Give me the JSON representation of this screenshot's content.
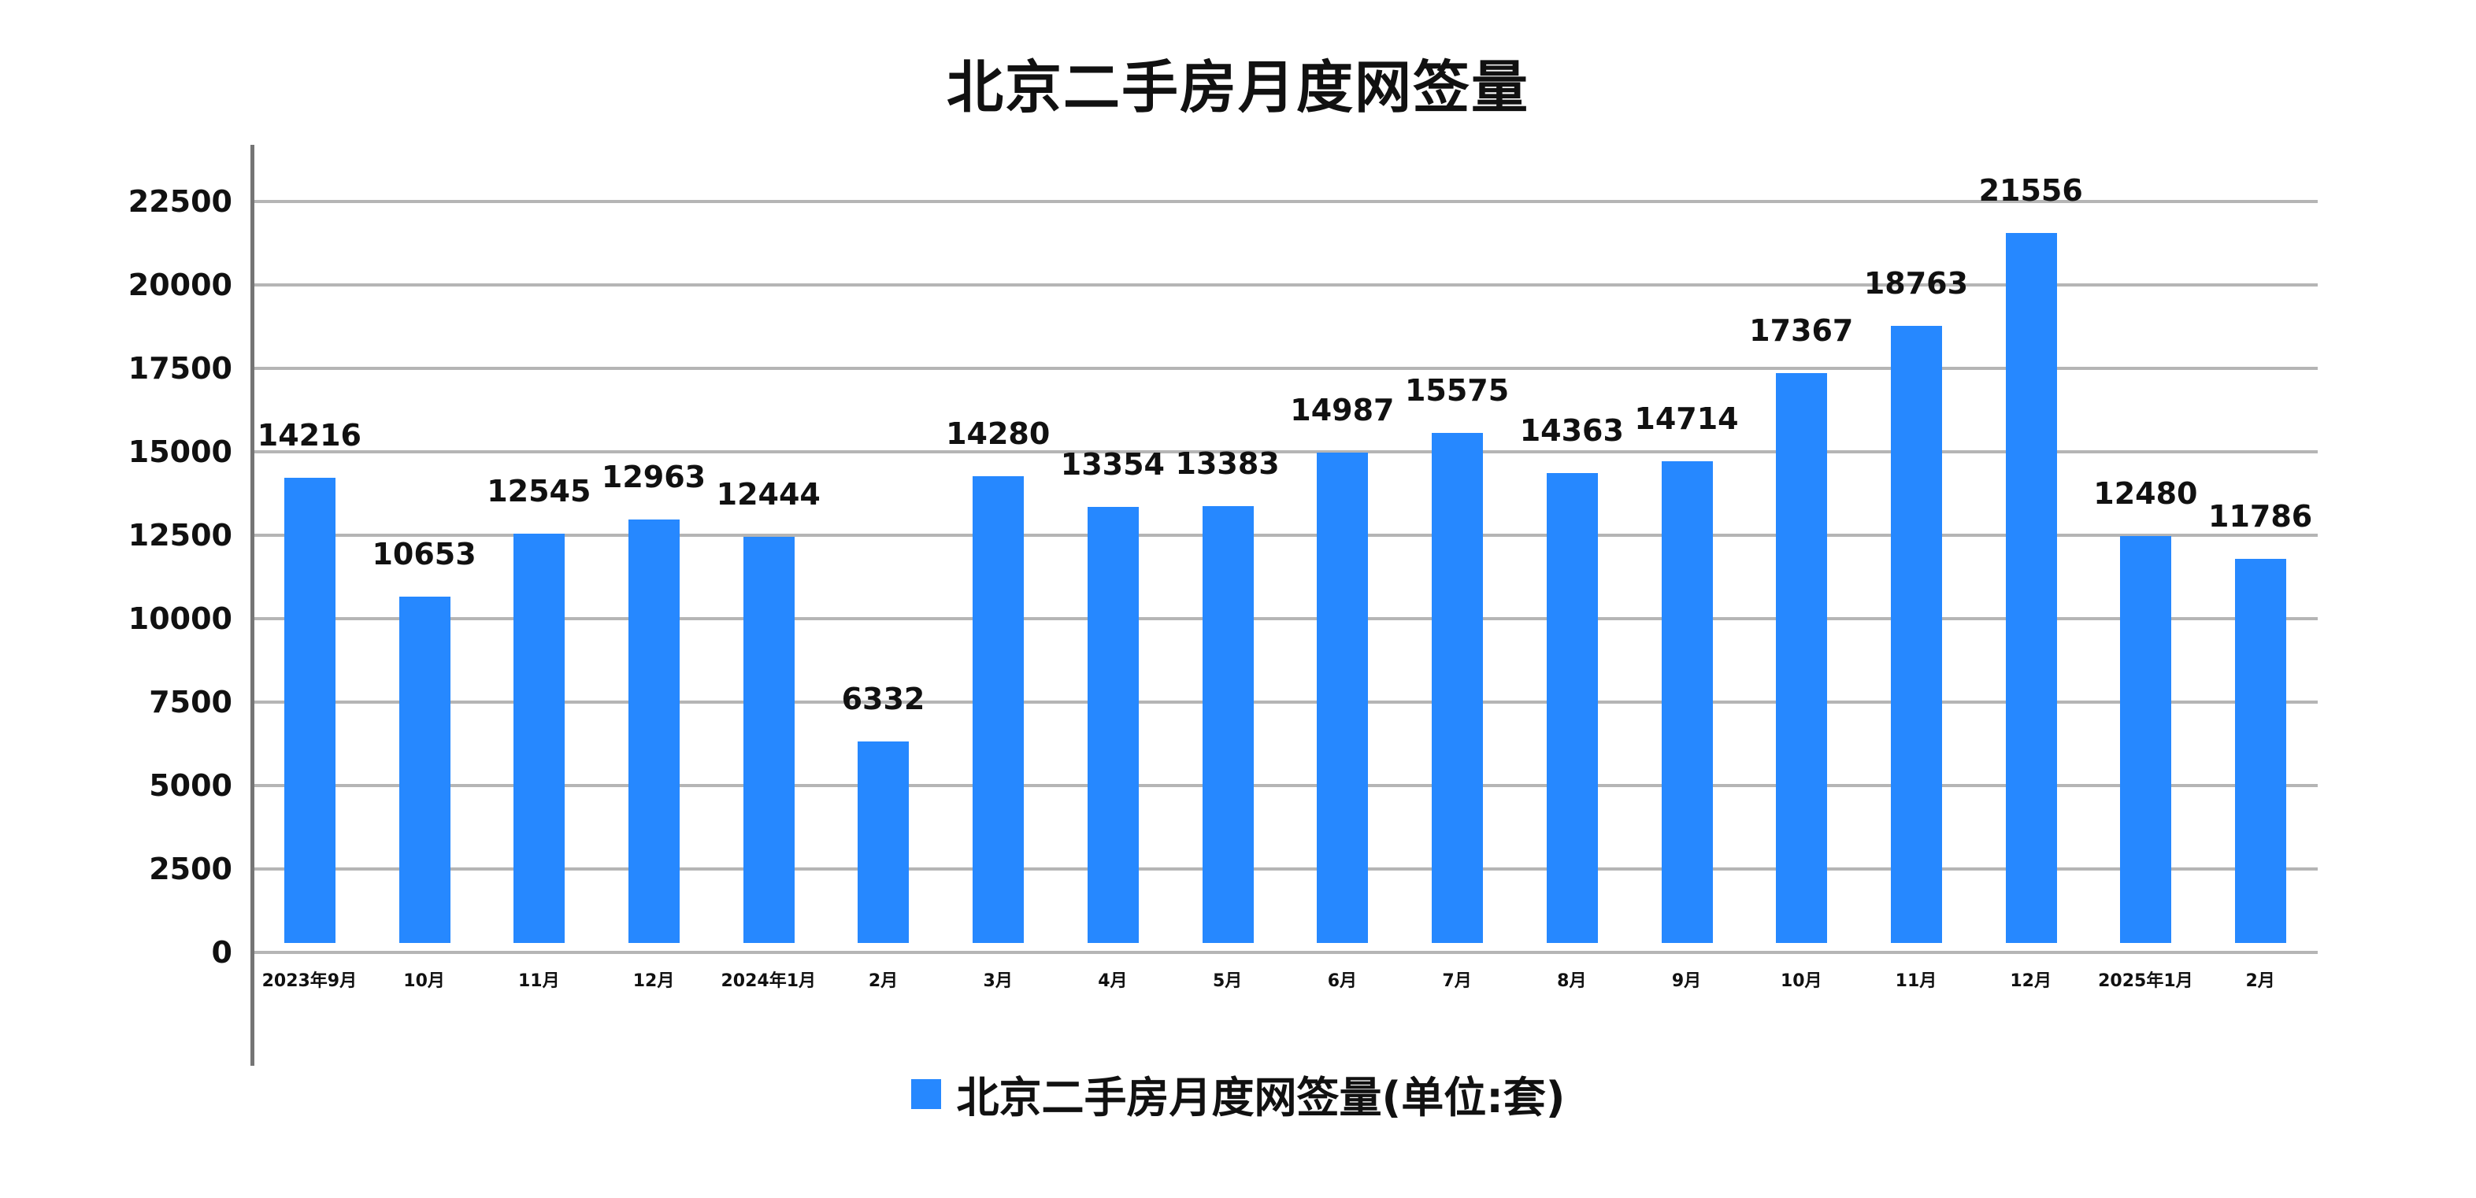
{
  "title": "北京二手房月度网签量",
  "legend": {
    "label": "北京二手房月度网签量(单位:套)",
    "color": "#2688ff"
  },
  "colors": {
    "bar": "#2688ff",
    "grid": "#b5b5b5",
    "axis": "#757575",
    "text": "#111111"
  },
  "chart_data": {
    "type": "bar",
    "title": "北京二手房月度网签量",
    "xlabel": "",
    "ylabel": "",
    "ylim": [
      0,
      22500
    ],
    "yticks": [
      0,
      2500,
      5000,
      7500,
      10000,
      12500,
      15000,
      17500,
      20000,
      22500
    ],
    "grid": true,
    "legend_position": "bottom",
    "categories": [
      "2023年9月",
      "10月",
      "11月",
      "12月",
      "2024年1月",
      "2月",
      "3月",
      "4月",
      "5月",
      "6月",
      "7月",
      "8月",
      "9月",
      "10月",
      "11月",
      "12月",
      "2025年1月",
      "2月"
    ],
    "series": [
      {
        "name": "北京二手房月度网签量(单位:套)",
        "values": [
          14216,
          10653,
          12545,
          12963,
          12444,
          6332,
          14280,
          13354,
          13383,
          14987,
          15575,
          14363,
          14714,
          17367,
          18763,
          21556,
          12480,
          11786
        ]
      }
    ]
  }
}
